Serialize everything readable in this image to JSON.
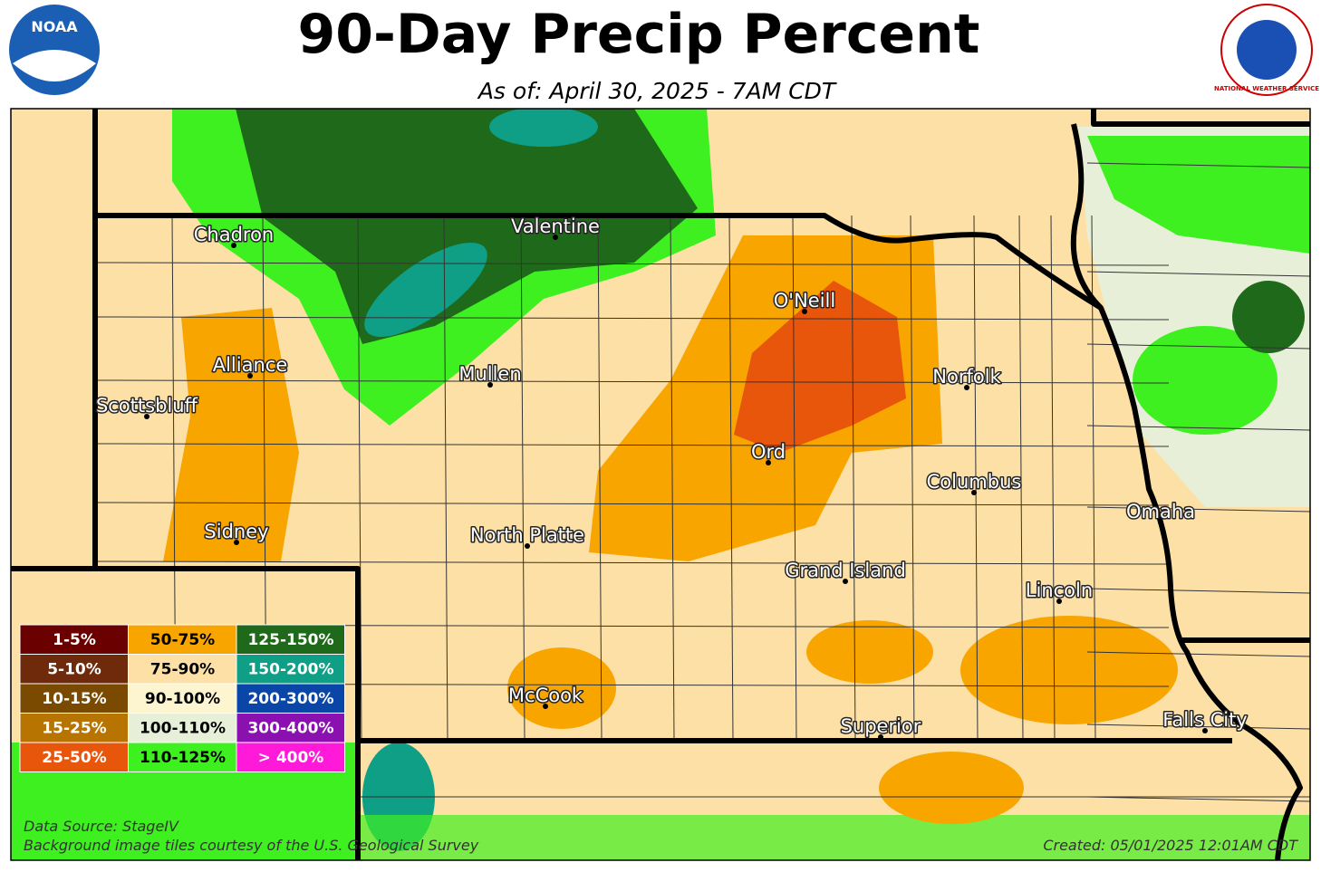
{
  "header": {
    "title": "90-Day Precip Percent",
    "subtitle": "As of: April 30, 2025 - 7AM CDT"
  },
  "logos": {
    "left": "NOAA",
    "right": "NATIONAL WEATHER SERVICE"
  },
  "cities": [
    "Chadron",
    "Valentine",
    "O'Neill",
    "Alliance",
    "Mullen",
    "Norfolk",
    "Scottsbluff",
    "Ord",
    "Columbus",
    "Omaha",
    "Sidney",
    "North Platte",
    "Grand Island",
    "Lincoln",
    "McCook",
    "Superior",
    "Falls City"
  ],
  "legend": {
    "items": [
      {
        "label": "1-5%",
        "color": "#6b0000"
      },
      {
        "label": "5-10%",
        "color": "#6e2a0a"
      },
      {
        "label": "10-15%",
        "color": "#7a4a00"
      },
      {
        "label": "15-25%",
        "color": "#b87400"
      },
      {
        "label": "25-50%",
        "color": "#e8560c"
      },
      {
        "label": "50-75%",
        "color": "#f8a500"
      },
      {
        "label": "75-90%",
        "color": "#fde0a6"
      },
      {
        "label": "90-100%",
        "color": "#fdf4d0"
      },
      {
        "label": "100-110%",
        "color": "#e8efd8"
      },
      {
        "label": "110-125%",
        "color": "#3ef020"
      },
      {
        "label": "125-150%",
        "color": "#1f6a1a"
      },
      {
        "label": "150-200%",
        "color": "#0f9e86"
      },
      {
        "label": "200-300%",
        "color": "#0a46a8"
      },
      {
        "label": "300-400%",
        "color": "#8a10b0"
      },
      {
        "label": "> 400%",
        "color": "#ff1ad9"
      }
    ]
  },
  "footer": {
    "source": "Data Source: StageIV",
    "credit": "Background image tiles courtesy of the U.S. Geological Survey",
    "created": "Created: 05/01/2025 12:01AM CDT"
  }
}
